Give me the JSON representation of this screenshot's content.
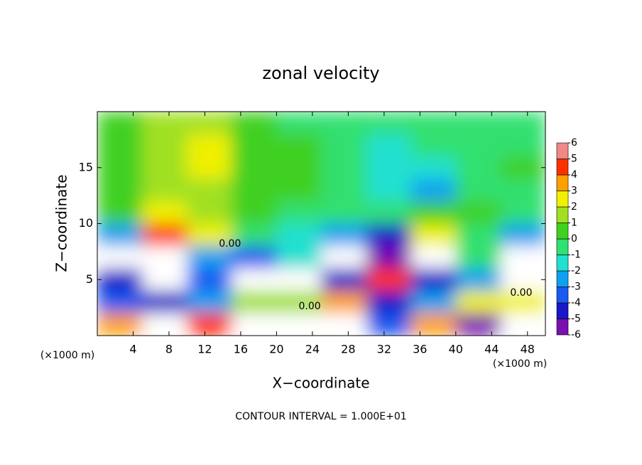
{
  "chart_data": {
    "type": "heatmap",
    "title": "zonal velocity",
    "x_label": "X−coordinate",
    "y_label": "Z−coordinate",
    "x_unit": "(×1000 m)",
    "y_unit": "(×1000 m)",
    "footer": "CONTOUR INTERVAL = 1.000E+01",
    "xlim": [
      0,
      50
    ],
    "ylim": [
      0,
      20
    ],
    "xticks": [
      4,
      8,
      12,
      16,
      20,
      24,
      28,
      32,
      36,
      40,
      44,
      48
    ],
    "yticks": [
      5,
      10,
      15
    ],
    "x": [
      0,
      5,
      10,
      15,
      20,
      25,
      30,
      35,
      40,
      45,
      50
    ],
    "z": [
      20,
      18,
      16,
      14,
      12,
      10,
      8,
      6,
      4,
      2,
      0
    ],
    "values": [
      [
        1,
        1.5,
        1.5,
        0.5,
        0,
        -0.5,
        -0.5,
        0,
        0,
        0
      ],
      [
        0.5,
        2,
        3,
        1,
        0.5,
        -0.5,
        -1,
        -0.5,
        0,
        0
      ],
      [
        0.5,
        2,
        3,
        1,
        0.5,
        0,
        -1,
        -1,
        0,
        0.5
      ],
      [
        0.5,
        1.5,
        2,
        1,
        0.5,
        0,
        -1.5,
        -2,
        0,
        0
      ],
      [
        0.5,
        3,
        1.5,
        0.5,
        0,
        0,
        -0.5,
        0.5,
        0.5,
        0
      ],
      [
        -2,
        5,
        3,
        0,
        -1,
        -2,
        -4,
        3,
        0,
        -2
      ],
      [
        8,
        8,
        -2,
        -3,
        -1,
        8,
        -5,
        8,
        0,
        8
      ],
      [
        -4,
        8,
        -3,
        8,
        8,
        -4,
        5,
        -4,
        -2,
        8
      ],
      [
        -3,
        -4,
        -2,
        2,
        2,
        4,
        -4,
        -2,
        3,
        3
      ],
      [
        4,
        8,
        5,
        8,
        8,
        8,
        -3,
        4,
        -5,
        8
      ]
    ],
    "levels": [
      -6,
      -5,
      -4,
      -3,
      -2,
      -1,
      0,
      1,
      2,
      3,
      4,
      5,
      6
    ],
    "colors": [
      "#7a10b0",
      "#1818c8",
      "#1a5af0",
      "#10a0f0",
      "#20e0d0",
      "#30e070",
      "#40d020",
      "#a0e020",
      "#f0f000",
      "#ffa000",
      "#ff3000",
      "#f08888"
    ],
    "out_of_range_color": "#ffffff",
    "contour_labels": [
      {
        "value": 0,
        "label": "0.00",
        "x": 14.8,
        "z": 8.2
      },
      {
        "value": 0,
        "label": "0.00",
        "x": 23.7,
        "z": 2.6
      },
      {
        "value": 0,
        "label": "0.00",
        "x": 47.3,
        "z": 3.8
      }
    ]
  }
}
